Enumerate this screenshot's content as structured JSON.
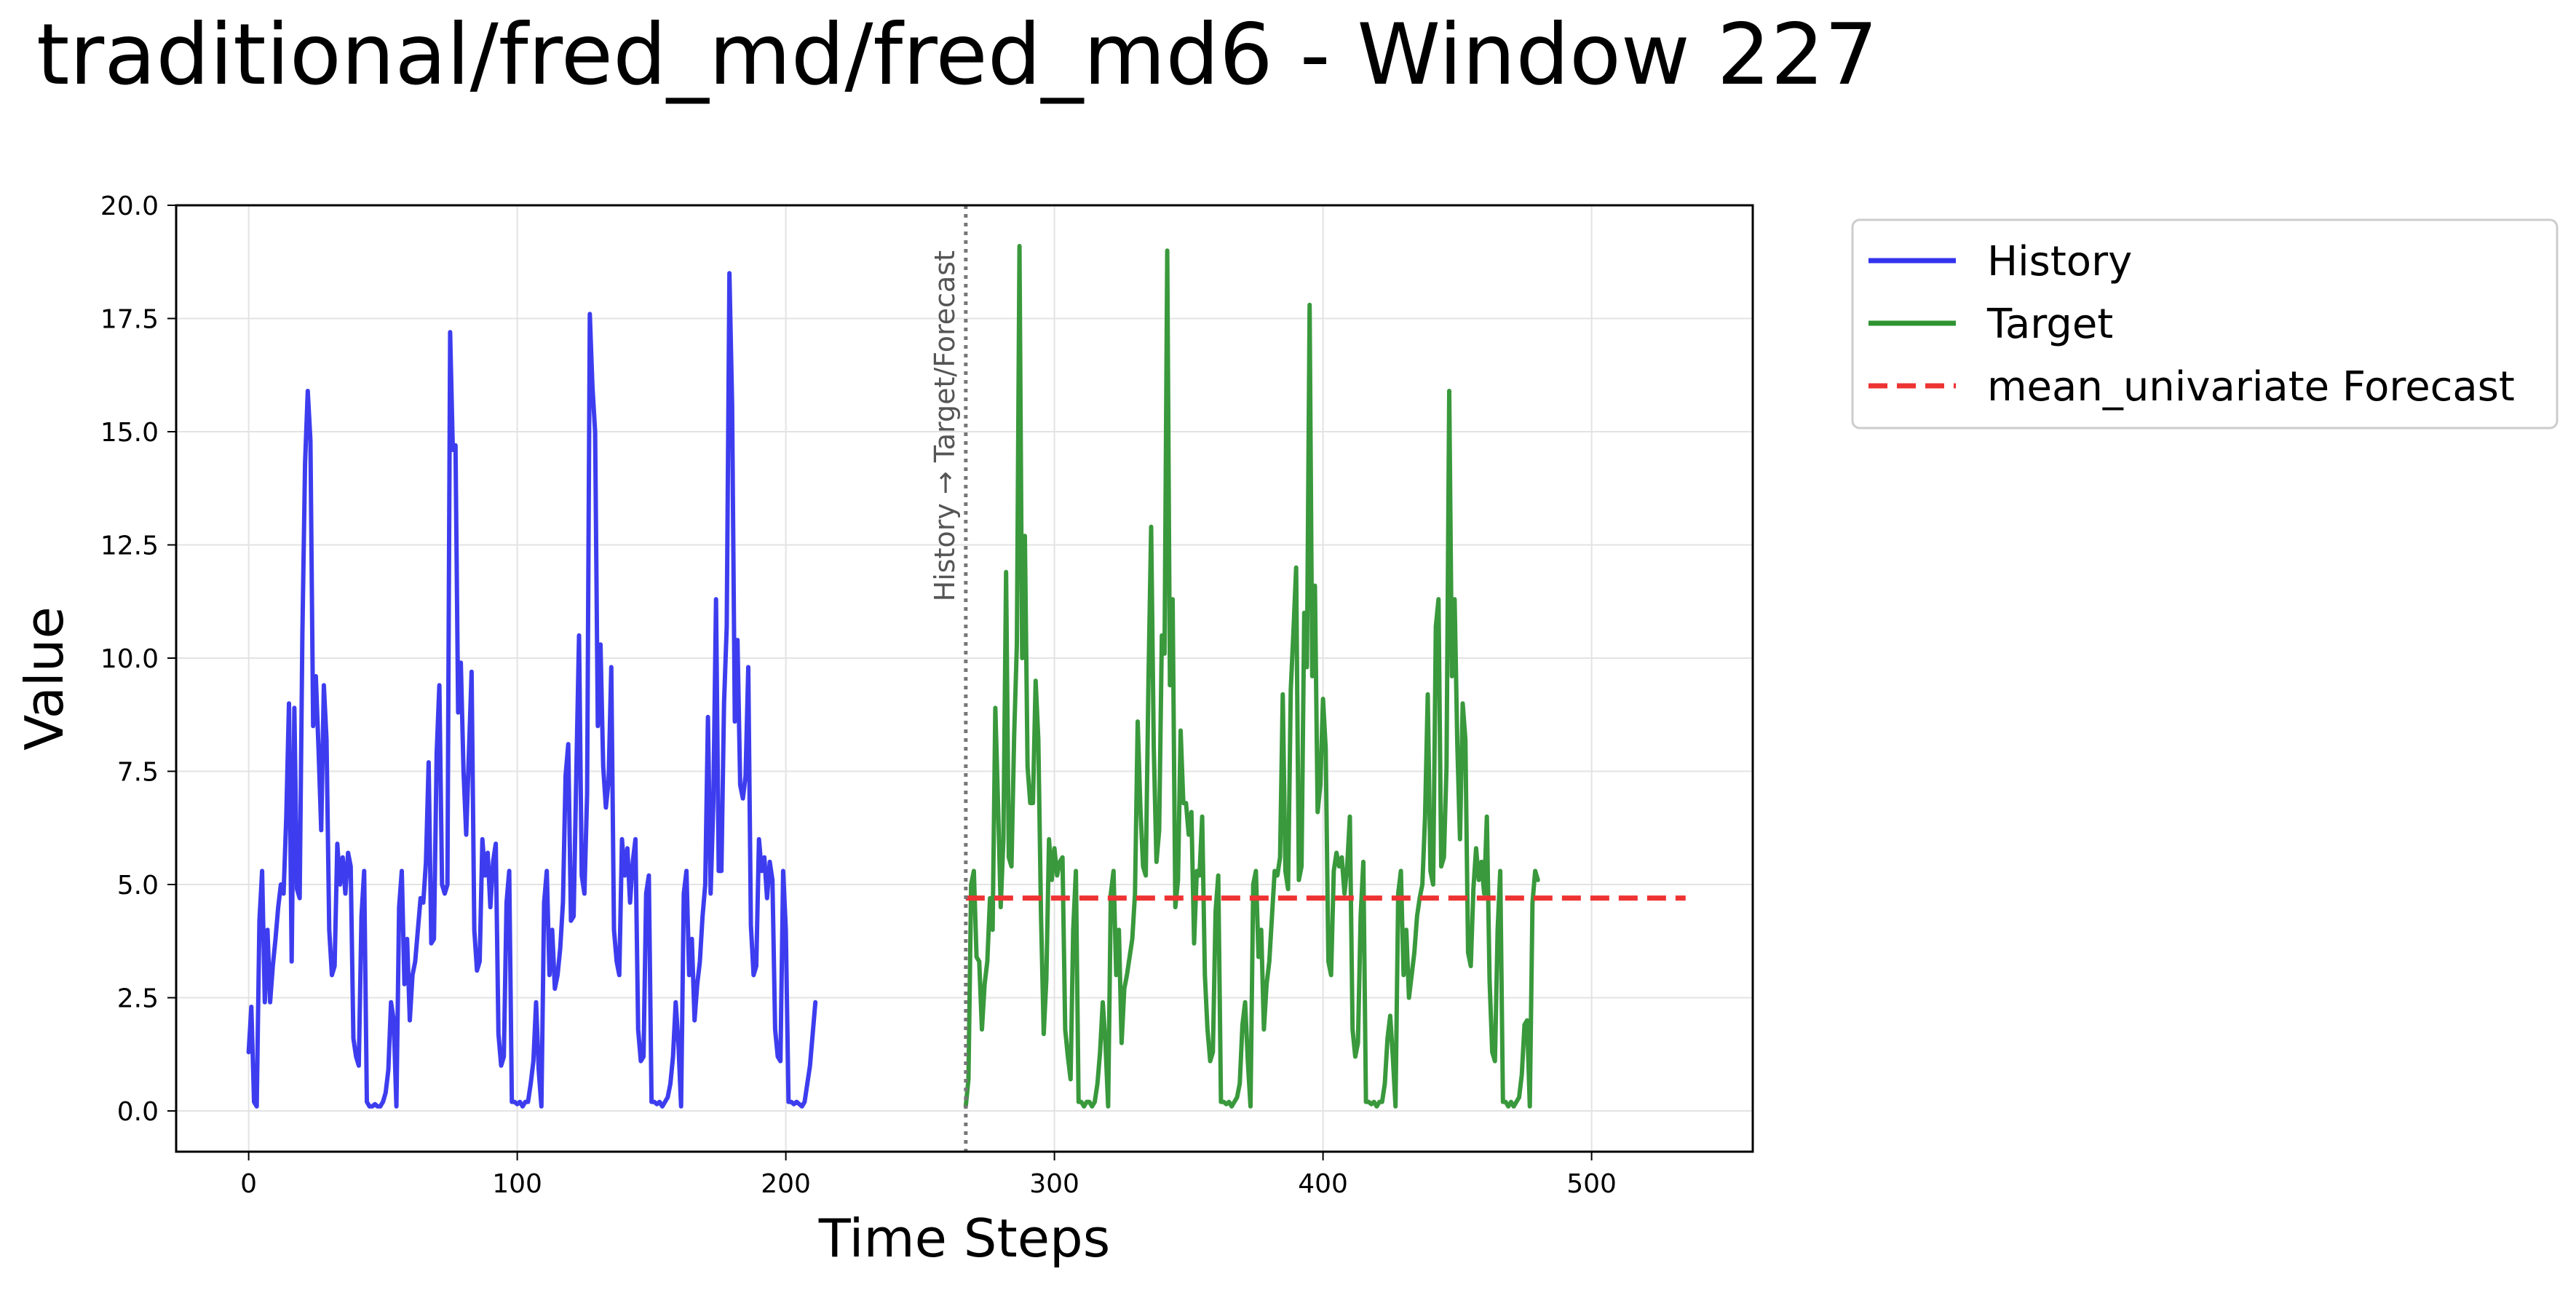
{
  "title": "traditional/fred_md/fred_md6 - Window 227",
  "chart_data": {
    "type": "line",
    "xlabel": "Time Steps",
    "ylabel": "Value",
    "xlim": [
      -27,
      560
    ],
    "ylim": [
      -0.9,
      20.0
    ],
    "xticks": [
      0,
      100,
      200,
      300,
      400,
      500
    ],
    "yticks": [
      0.0,
      2.5,
      5.0,
      7.5,
      10.0,
      12.5,
      15.0,
      17.5,
      20.0
    ],
    "ytick_labels": [
      "0.0",
      "2.5",
      "5.0",
      "7.5",
      "10.0",
      "12.5",
      "15.0",
      "17.5",
      "20.0"
    ],
    "grid": true,
    "legend_position": "outside-top-right",
    "split_annotation": {
      "x": 267,
      "label": "History → Target/Forecast"
    },
    "series": [
      {
        "name": "History",
        "color": "#3333ee",
        "style": "solid",
        "x_start": 0,
        "values": [
          1.3,
          2.3,
          0.2,
          0.1,
          4.2,
          5.3,
          2.4,
          4.0,
          2.4,
          3.2,
          3.8,
          4.5,
          5.0,
          4.8,
          6.5,
          9.0,
          3.3,
          8.9,
          4.9,
          4.7,
          10.5,
          14.3,
          15.9,
          14.8,
          8.5,
          9.6,
          8.0,
          6.2,
          9.4,
          8.2,
          4.0,
          3.0,
          3.2,
          5.9,
          5.0,
          5.6,
          4.8,
          5.7,
          5.4,
          1.6,
          1.2,
          1.0,
          4.3,
          5.3,
          0.2,
          0.1,
          0.1,
          0.15,
          0.1,
          0.1,
          0.2,
          0.4,
          0.9,
          2.4,
          2.0,
          0.1,
          4.5,
          5.3,
          2.8,
          3.8,
          2.0,
          3.0,
          3.3,
          4.0,
          4.7,
          4.6,
          5.5,
          7.7,
          3.7,
          3.8,
          7.9,
          9.4,
          5.0,
          4.8,
          5.0,
          17.2,
          14.6,
          14.7,
          8.8,
          9.9,
          7.5,
          6.1,
          7.9,
          9.7,
          4.0,
          3.1,
          3.3,
          6.0,
          5.2,
          5.7,
          4.5,
          5.5,
          5.9,
          1.7,
          1.0,
          1.2,
          4.6,
          5.3,
          0.2,
          0.2,
          0.15,
          0.2,
          0.1,
          0.2,
          0.2,
          0.6,
          1.1,
          2.4,
          0.9,
          0.1,
          4.6,
          5.3,
          3.0,
          4.0,
          2.7,
          3.0,
          3.6,
          4.6,
          7.4,
          8.1,
          4.2,
          4.3,
          7.5,
          10.5,
          5.2,
          4.8,
          7.0,
          17.6,
          16.0,
          15.0,
          8.5,
          10.3,
          7.6,
          6.7,
          7.3,
          9.8,
          4.0,
          3.3,
          3.0,
          6.0,
          5.2,
          5.8,
          4.6,
          5.5,
          6.0,
          1.8,
          1.1,
          1.2,
          4.8,
          5.2,
          0.2,
          0.2,
          0.15,
          0.2,
          0.1,
          0.2,
          0.3,
          0.6,
          1.2,
          2.4,
          1.5,
          0.1,
          4.8,
          5.3,
          3.0,
          3.8,
          2.0,
          2.8,
          3.3,
          4.3,
          5.0,
          8.7,
          4.8,
          6.8,
          11.3,
          5.3,
          5.3,
          9.0,
          10.7,
          18.5,
          15.6,
          8.6,
          10.4,
          7.2,
          6.9,
          7.4,
          9.8,
          4.1,
          3.0,
          3.2,
          6.0,
          5.3,
          5.6,
          4.7,
          5.5,
          5.1,
          1.8,
          1.2,
          1.1,
          5.3,
          4.0,
          0.2,
          0.2,
          0.15,
          0.2,
          0.15,
          0.1,
          0.2,
          0.6,
          1.0,
          1.7,
          2.4
        ]
      },
      {
        "name": "Target",
        "color": "#2e9431",
        "style": "solid",
        "x_start": 267,
        "values": [
          0.1,
          0.7,
          5.0,
          5.3,
          3.4,
          3.3,
          1.8,
          2.8,
          3.3,
          4.7,
          4.0,
          8.9,
          6.8,
          4.5,
          6.0,
          11.9,
          5.6,
          5.4,
          8.3,
          10.3,
          19.1,
          10.0,
          12.7,
          7.6,
          6.8,
          6.8,
          9.5,
          8.2,
          4.3,
          1.7,
          2.9,
          6.0,
          5.1,
          5.8,
          5.2,
          5.5,
          5.6,
          1.8,
          1.2,
          0.7,
          4.0,
          5.3,
          0.2,
          0.2,
          0.1,
          0.2,
          0.2,
          0.1,
          0.2,
          0.6,
          1.3,
          2.4,
          1.5,
          0.1,
          4.8,
          5.3,
          3.0,
          4.0,
          1.5,
          2.7,
          3.0,
          3.4,
          3.8,
          4.8,
          8.6,
          6.7,
          5.4,
          5.2,
          9.5,
          12.9,
          8.0,
          5.5,
          6.2,
          10.5,
          10.1,
          19.0,
          9.4,
          11.3,
          4.5,
          5.1,
          8.4,
          6.8,
          6.8,
          6.1,
          6.6,
          3.7,
          5.3,
          5.2,
          6.5,
          3.0,
          1.8,
          1.1,
          1.3,
          4.4,
          5.2,
          0.2,
          0.2,
          0.15,
          0.2,
          0.1,
          0.2,
          0.3,
          0.6,
          1.9,
          2.4,
          1.1,
          0.1,
          5.0,
          5.3,
          3.4,
          4.0,
          1.8,
          2.8,
          3.3,
          4.3,
          5.3,
          5.2,
          5.6,
          9.2,
          5.3,
          4.9,
          9.3,
          10.6,
          12.0,
          5.1,
          5.4,
          11.0,
          9.8,
          17.8,
          9.6,
          11.6,
          6.6,
          7.2,
          9.1,
          8.0,
          3.3,
          3.0,
          5.3,
          5.7,
          5.4,
          5.6,
          4.8,
          5.4,
          6.5,
          1.8,
          1.2,
          1.5,
          4.3,
          5.5,
          0.2,
          0.2,
          0.15,
          0.2,
          0.1,
          0.2,
          0.2,
          0.6,
          1.6,
          2.1,
          1.2,
          0.1,
          4.8,
          5.3,
          3.0,
          4.0,
          2.5,
          3.0,
          3.5,
          4.3,
          4.7,
          5.0,
          6.5,
          9.2,
          5.3,
          5.0,
          10.7,
          11.3,
          5.4,
          5.6,
          7.6,
          15.9,
          9.6,
          11.3,
          8.1,
          6.0,
          9.0,
          8.2,
          3.5,
          3.2,
          4.9,
          5.8,
          5.1,
          5.5,
          4.8,
          6.5,
          2.9,
          1.3,
          1.1,
          4.0,
          5.3,
          0.2,
          0.2,
          0.1,
          0.2,
          0.1,
          0.2,
          0.3,
          0.8,
          1.9,
          2.0,
          0.1,
          4.6,
          5.3,
          5.1
        ]
      },
      {
        "name": "mean_univariate Forecast",
        "color": "#ee3333",
        "style": "dashed",
        "x_range": [
          267,
          535
        ],
        "value": 4.7
      }
    ]
  }
}
